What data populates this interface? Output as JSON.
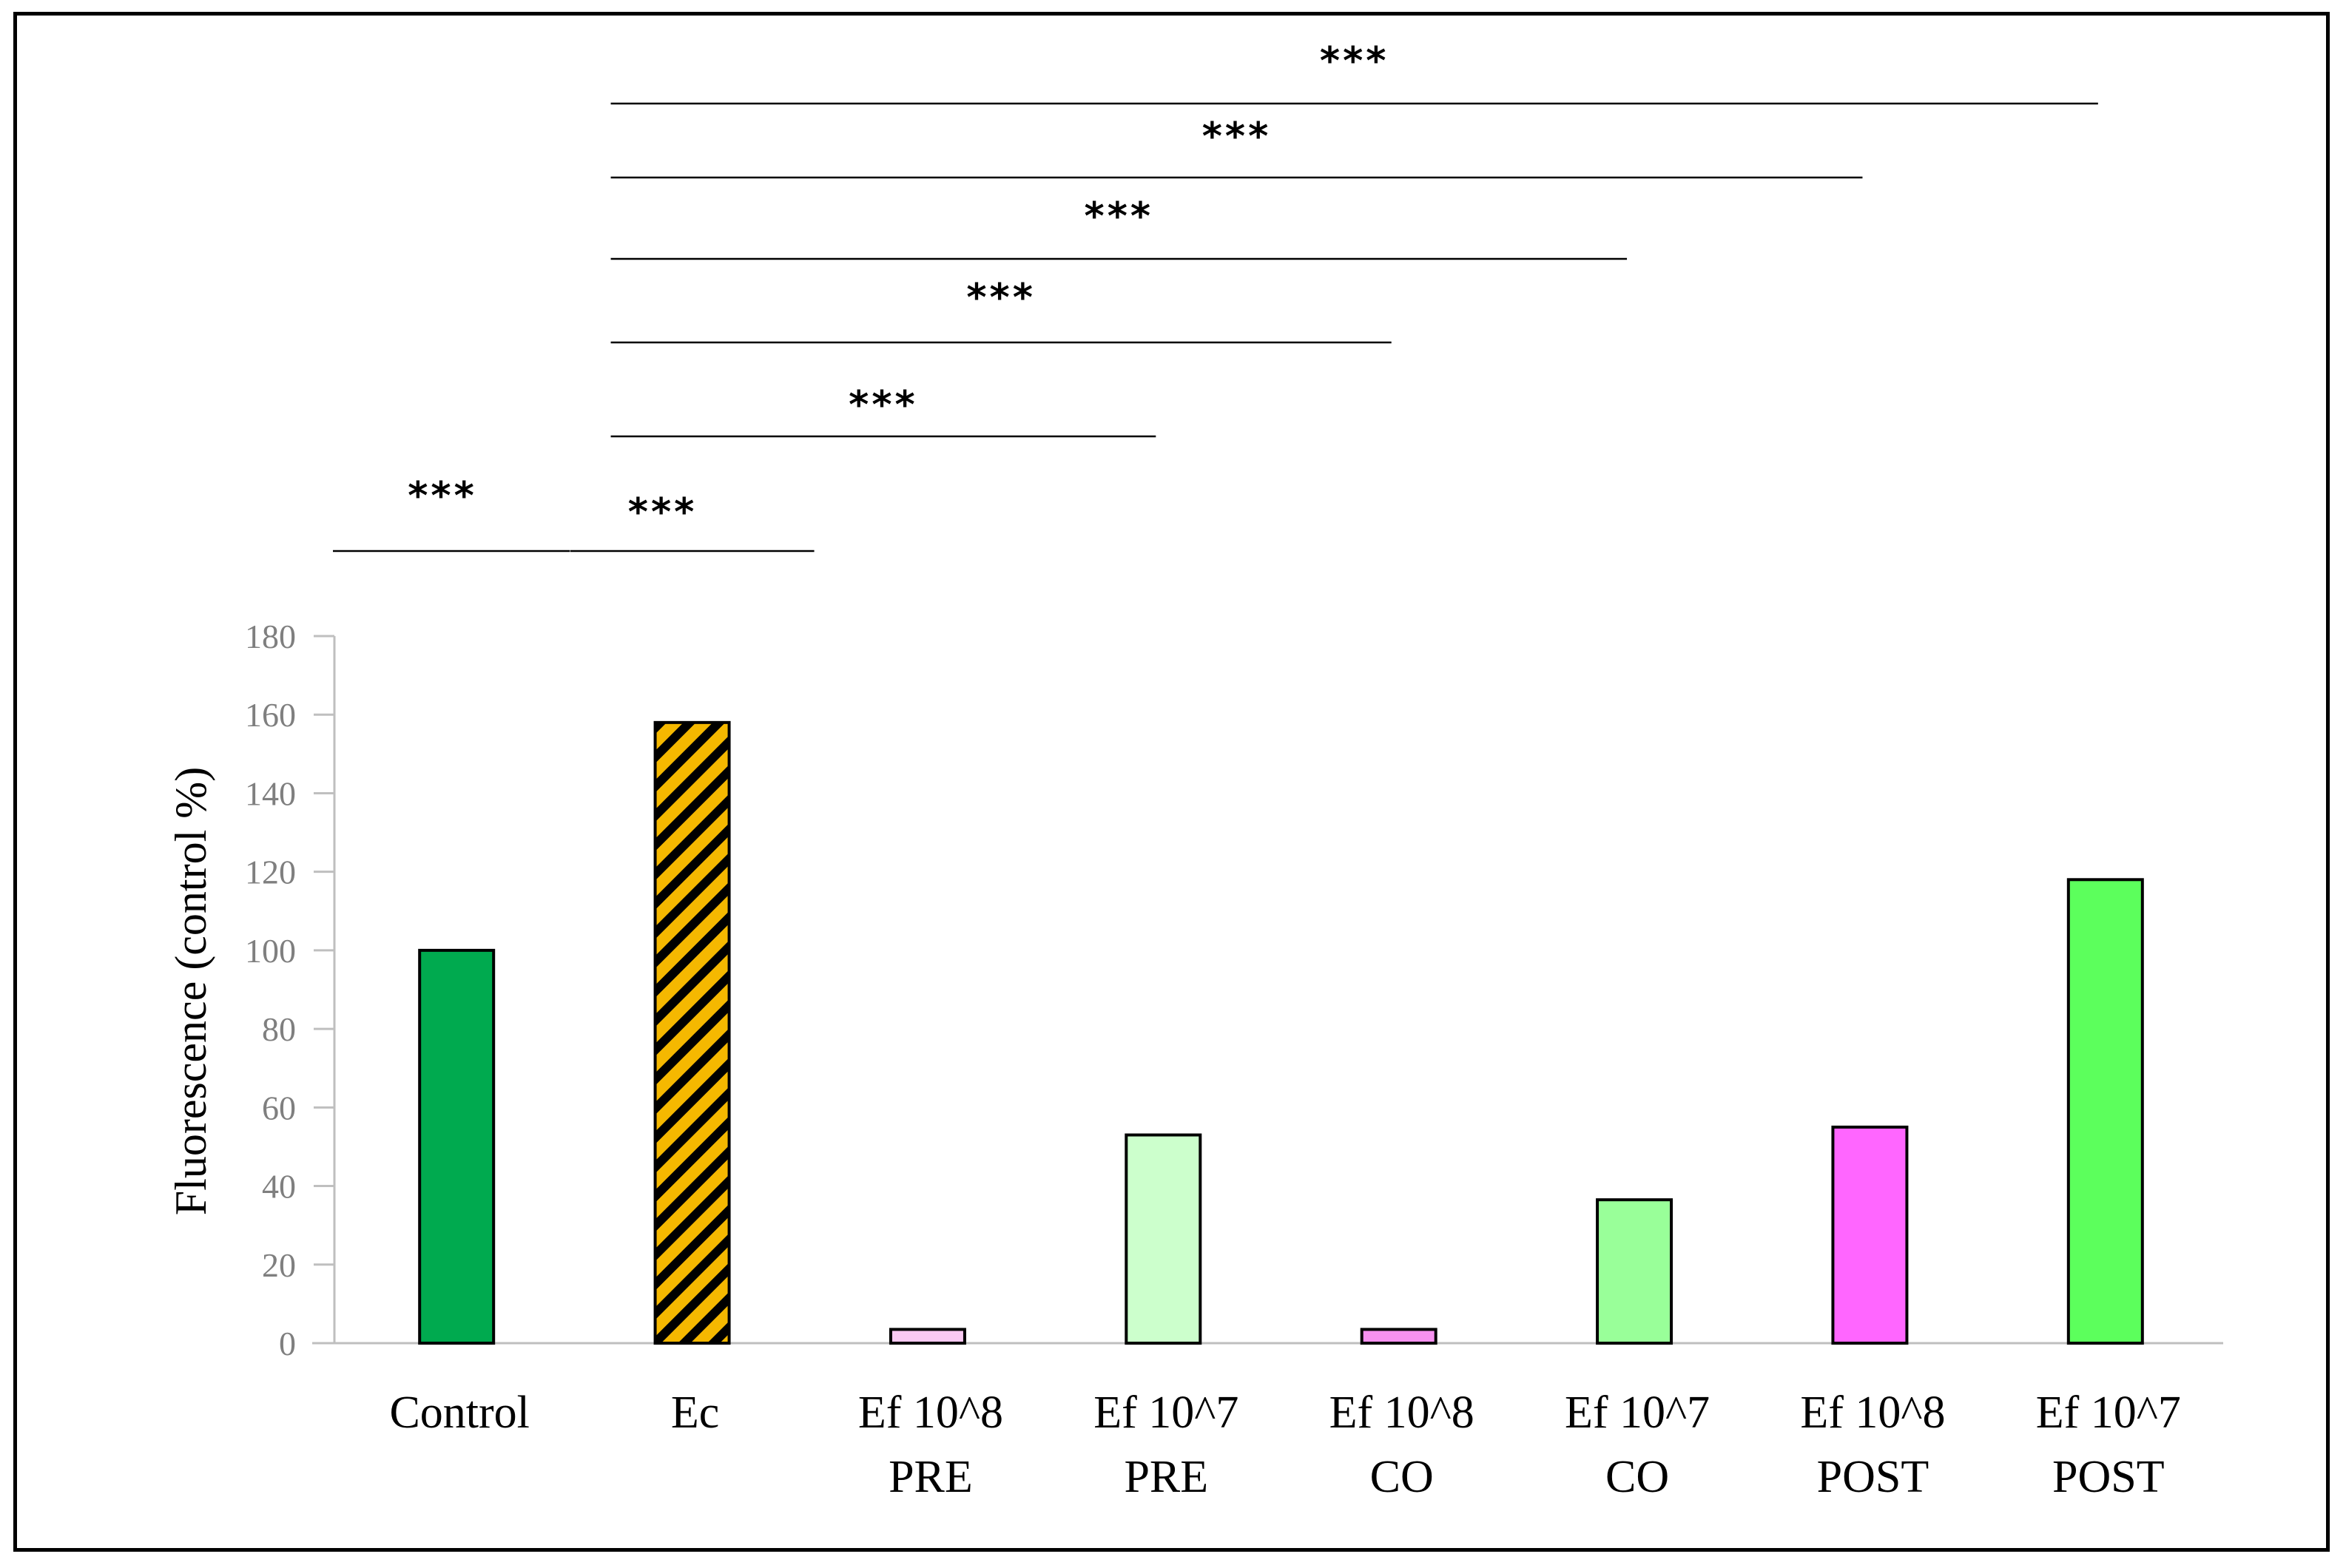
{
  "chart_data": {
    "type": "bar",
    "title": "",
    "xlabel": "",
    "ylabel": "Fluorescence (control %)",
    "ylim": [
      0,
      180
    ],
    "yticks": [
      0,
      20,
      40,
      60,
      80,
      100,
      120,
      140,
      160,
      180
    ],
    "categories": [
      [
        "Control"
      ],
      [
        "Ec"
      ],
      [
        "Ef 10^8",
        "PRE"
      ],
      [
        "Ef 10^7",
        "PRE"
      ],
      [
        "Ef 10^8",
        "CO"
      ],
      [
        "Ef 10^7",
        "CO"
      ],
      [
        "Ef 10^8",
        "POST"
      ],
      [
        "Ef 10^7",
        "POST"
      ]
    ],
    "values": [
      100,
      158,
      3.5,
      53,
      3.5,
      36.5,
      55,
      118
    ],
    "bar_colors": [
      "#00AA4F",
      "#F5B800",
      "#F9C9F2",
      "#CCFFCC",
      "#F791F0",
      "#99FF99",
      "#FF66FF",
      "#5CFF5C"
    ],
    "bar_patterns": [
      "solid",
      "hatched",
      "solid",
      "solid",
      "solid",
      "solid",
      "solid",
      "solid"
    ],
    "grid": false,
    "significance": [
      {
        "label": "***",
        "from": 0,
        "to": 0,
        "level": 0
      },
      {
        "label": "***",
        "from": 1,
        "to": 1,
        "level": 0
      },
      {
        "label": "***",
        "from": 1,
        "to": 3,
        "level": 1
      },
      {
        "label": "***",
        "from": 1,
        "to": 4,
        "level": 2
      },
      {
        "label": "***",
        "from": 1,
        "to": 5,
        "level": 3
      },
      {
        "label": "***",
        "from": 1,
        "to": 6,
        "level": 4
      },
      {
        "label": "***",
        "from": 1,
        "to": 7,
        "level": 5
      }
    ]
  }
}
